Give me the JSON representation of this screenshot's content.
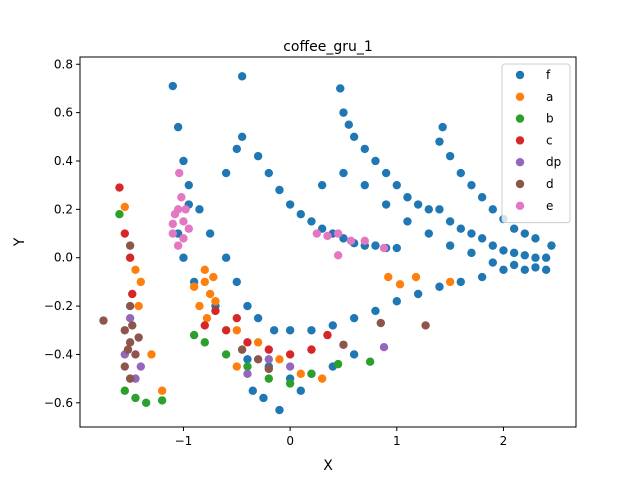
{
  "chart_data": {
    "type": "scatter",
    "title": "coffee_gru_1",
    "xlabel": "X",
    "ylabel": "Y",
    "xlim": [
      -1.97,
      2.68
    ],
    "ylim": [
      -0.7,
      0.83
    ],
    "xticks": [
      -1,
      0,
      1,
      2
    ],
    "yticks": [
      -0.6,
      -0.4,
      -0.2,
      0.0,
      0.2,
      0.4,
      0.6,
      0.8
    ],
    "legend_position": "upper right",
    "grid": false,
    "series": [
      {
        "name": "f",
        "color": "#1f77b4",
        "points": [
          [
            -1.1,
            0.71
          ],
          [
            -0.45,
            0.75
          ],
          [
            0.47,
            0.7
          ],
          [
            1.43,
            0.54
          ],
          [
            -1.05,
            0.54
          ],
          [
            -1.0,
            0.4
          ],
          [
            -0.95,
            0.3
          ],
          [
            -0.85,
            0.2
          ],
          [
            -0.75,
            0.1
          ],
          [
            -0.6,
            0.0
          ],
          [
            -0.5,
            -0.1
          ],
          [
            -0.4,
            -0.2
          ],
          [
            -0.3,
            -0.25
          ],
          [
            -0.15,
            -0.3
          ],
          [
            0.0,
            -0.3
          ],
          [
            0.2,
            -0.3
          ],
          [
            0.4,
            -0.28
          ],
          [
            0.6,
            -0.25
          ],
          [
            0.8,
            -0.22
          ],
          [
            1.0,
            -0.18
          ],
          [
            1.2,
            -0.15
          ],
          [
            1.4,
            -0.12
          ],
          [
            1.6,
            -0.1
          ],
          [
            1.8,
            -0.08
          ],
          [
            2.0,
            -0.05
          ],
          [
            2.2,
            -0.05
          ],
          [
            2.4,
            -0.05
          ],
          [
            -0.6,
            0.35
          ],
          [
            -0.5,
            0.45
          ],
          [
            -0.45,
            0.5
          ],
          [
            -0.3,
            0.42
          ],
          [
            -0.2,
            0.35
          ],
          [
            -0.1,
            0.28
          ],
          [
            0.0,
            0.22
          ],
          [
            0.1,
            0.18
          ],
          [
            0.2,
            0.15
          ],
          [
            0.3,
            0.12
          ],
          [
            0.4,
            0.1
          ],
          [
            0.5,
            0.08
          ],
          [
            0.6,
            0.06
          ],
          [
            0.7,
            0.05
          ],
          [
            0.8,
            0.05
          ],
          [
            0.9,
            0.04
          ],
          [
            1.0,
            0.04
          ],
          [
            0.5,
            0.6
          ],
          [
            0.55,
            0.55
          ],
          [
            0.6,
            0.5
          ],
          [
            0.7,
            0.45
          ],
          [
            0.8,
            0.4
          ],
          [
            0.9,
            0.35
          ],
          [
            1.0,
            0.3
          ],
          [
            1.1,
            0.25
          ],
          [
            1.2,
            0.22
          ],
          [
            1.3,
            0.2
          ],
          [
            1.4,
            0.2
          ],
          [
            1.5,
            0.15
          ],
          [
            1.6,
            0.12
          ],
          [
            1.7,
            0.1
          ],
          [
            1.8,
            0.08
          ],
          [
            1.9,
            0.05
          ],
          [
            2.0,
            0.03
          ],
          [
            2.1,
            0.02
          ],
          [
            2.2,
            0.01
          ],
          [
            2.3,
            0.0
          ],
          [
            2.4,
            0.0
          ],
          [
            2.45,
            0.05
          ],
          [
            1.4,
            0.48
          ],
          [
            1.5,
            0.42
          ],
          [
            1.6,
            0.35
          ],
          [
            1.7,
            0.3
          ],
          [
            1.8,
            0.25
          ],
          [
            1.9,
            0.2
          ],
          [
            2.0,
            0.16
          ],
          [
            2.1,
            0.12
          ],
          [
            2.2,
            0.1
          ],
          [
            2.3,
            0.08
          ],
          [
            -0.4,
            -0.42
          ],
          [
            -0.2,
            -0.45
          ],
          [
            0.0,
            -0.5
          ],
          [
            0.2,
            -0.48
          ],
          [
            0.4,
            -0.45
          ],
          [
            0.6,
            -0.4
          ],
          [
            -0.35,
            -0.55
          ],
          [
            -0.25,
            -0.58
          ],
          [
            -0.1,
            -0.63
          ],
          [
            0.1,
            -0.55
          ],
          [
            -0.7,
            -0.2
          ],
          [
            -0.9,
            -0.1
          ],
          [
            -1.0,
            0.0
          ],
          [
            -1.05,
            0.1
          ],
          [
            -0.95,
            0.22
          ],
          [
            0.3,
            0.3
          ],
          [
            0.5,
            0.35
          ],
          [
            0.7,
            0.3
          ],
          [
            0.9,
            0.22
          ],
          [
            1.1,
            0.15
          ],
          [
            1.3,
            0.1
          ],
          [
            1.5,
            0.05
          ],
          [
            1.7,
            0.02
          ],
          [
            1.9,
            -0.02
          ],
          [
            2.1,
            -0.03
          ],
          [
            2.3,
            -0.04
          ]
        ]
      },
      {
        "name": "a",
        "color": "#ff7f0e",
        "points": [
          [
            -0.8,
            -0.1
          ],
          [
            -0.75,
            -0.15
          ],
          [
            -0.85,
            -0.2
          ],
          [
            -0.7,
            -0.18
          ],
          [
            -0.9,
            -0.12
          ],
          [
            -0.8,
            -0.05
          ],
          [
            -0.78,
            -0.25
          ],
          [
            -0.72,
            -0.08
          ],
          [
            -1.55,
            0.21
          ],
          [
            -1.45,
            -0.05
          ],
          [
            -1.4,
            -0.1
          ],
          [
            -1.42,
            -0.2
          ],
          [
            -1.3,
            -0.4
          ],
          [
            -1.2,
            -0.55
          ],
          [
            -0.5,
            -0.3
          ],
          [
            -0.3,
            -0.35
          ],
          [
            -0.1,
            -0.42
          ],
          [
            0.1,
            -0.48
          ],
          [
            0.3,
            -0.5
          ],
          [
            -0.5,
            -0.45
          ],
          [
            0.92,
            -0.08
          ],
          [
            1.03,
            -0.11
          ],
          [
            1.18,
            -0.08
          ],
          [
            1.5,
            -0.1
          ]
        ]
      },
      {
        "name": "b",
        "color": "#2ca02c",
        "points": [
          [
            -1.6,
            0.18
          ],
          [
            -1.55,
            -0.55
          ],
          [
            -1.45,
            -0.58
          ],
          [
            -1.35,
            -0.6
          ],
          [
            -1.2,
            -0.59
          ],
          [
            -0.8,
            -0.35
          ],
          [
            -0.6,
            -0.4
          ],
          [
            -0.4,
            -0.45
          ],
          [
            -0.2,
            -0.5
          ],
          [
            0.0,
            -0.52
          ],
          [
            0.2,
            -0.48
          ],
          [
            0.45,
            -0.44
          ],
          [
            0.75,
            -0.43
          ],
          [
            -0.9,
            -0.32
          ]
        ]
      },
      {
        "name": "c",
        "color": "#d62728",
        "points": [
          [
            -1.6,
            0.29
          ],
          [
            -1.55,
            0.1
          ],
          [
            -1.5,
            0.0
          ],
          [
            -1.48,
            -0.15
          ],
          [
            -0.8,
            -0.28
          ],
          [
            -0.6,
            -0.3
          ],
          [
            -0.4,
            -0.35
          ],
          [
            -0.2,
            -0.38
          ],
          [
            0.0,
            -0.4
          ],
          [
            0.2,
            -0.38
          ],
          [
            0.35,
            -0.32
          ],
          [
            -0.7,
            -0.22
          ],
          [
            -0.5,
            -0.25
          ]
        ]
      },
      {
        "name": "dp",
        "color": "#9467bd",
        "points": [
          [
            -1.5,
            -0.25
          ],
          [
            -1.55,
            -0.4
          ],
          [
            -1.45,
            -0.5
          ],
          [
            -1.4,
            -0.45
          ],
          [
            -0.4,
            -0.48
          ],
          [
            -0.2,
            -0.42
          ],
          [
            0.0,
            -0.45
          ],
          [
            0.88,
            -0.37
          ]
        ]
      },
      {
        "name": "d",
        "color": "#8c564b",
        "points": [
          [
            -1.5,
            -0.2
          ],
          [
            -1.55,
            -0.3
          ],
          [
            -1.5,
            -0.35
          ],
          [
            -1.45,
            -0.4
          ],
          [
            -1.55,
            -0.45
          ],
          [
            -1.5,
            -0.5
          ],
          [
            -1.48,
            -0.28
          ],
          [
            -1.52,
            -0.38
          ],
          [
            -1.42,
            -0.33
          ],
          [
            -1.75,
            -0.26
          ],
          [
            -1.5,
            0.05
          ],
          [
            -0.45,
            -0.38
          ],
          [
            -0.3,
            -0.42
          ],
          [
            -0.2,
            -0.46
          ],
          [
            0.5,
            -0.36
          ],
          [
            0.85,
            -0.27
          ],
          [
            1.27,
            -0.28
          ]
        ]
      },
      {
        "name": "e",
        "color": "#e377c2",
        "points": [
          [
            -1.05,
            0.2
          ],
          [
            -1.0,
            0.15
          ],
          [
            -1.1,
            0.1
          ],
          [
            -0.95,
            0.12
          ],
          [
            -1.05,
            0.05
          ],
          [
            -1.0,
            0.08
          ],
          [
            -1.08,
            0.18
          ],
          [
            -0.98,
            0.2
          ],
          [
            -1.02,
            0.25
          ],
          [
            -1.1,
            0.14
          ],
          [
            -1.04,
            0.35
          ],
          [
            0.25,
            0.1
          ],
          [
            0.35,
            0.09
          ],
          [
            0.45,
            0.1
          ],
          [
            0.57,
            0.07
          ],
          [
            0.7,
            0.07
          ],
          [
            0.45,
            0.01
          ],
          [
            0.88,
            0.04
          ]
        ]
      }
    ]
  }
}
